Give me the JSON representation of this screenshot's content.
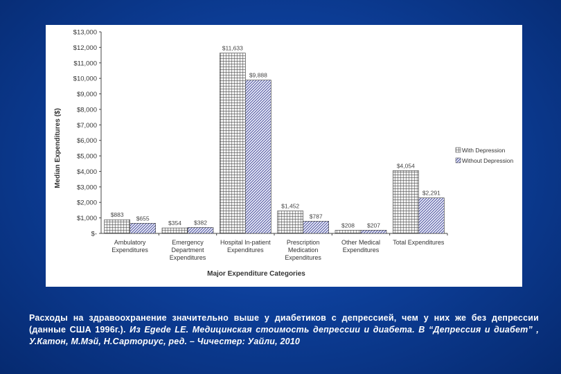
{
  "chart_data": {
    "type": "bar",
    "title": "",
    "xlabel": "Major Expenditure Categories",
    "ylabel": "Median Expenditures ($)",
    "ylim": [
      0,
      13000
    ],
    "y_ticks": [
      "$-",
      "$1,000",
      "$2,000",
      "$3,000",
      "$4,000",
      "$5,000",
      "$6,000",
      "$7,000",
      "$8,000",
      "$9,000",
      "$10,000",
      "$11,000",
      "$12,000",
      "$13,000"
    ],
    "categories": [
      [
        "Ambulatory",
        "Expenditures"
      ],
      [
        "Emergency",
        "Department",
        "Expenditures"
      ],
      [
        "Hospital In-patient",
        "Expenditures"
      ],
      [
        "Prescription",
        "Medication",
        "Expenditures"
      ],
      [
        "Other Medical",
        "Expenditures"
      ],
      [
        "Total Expenditures"
      ]
    ],
    "series": [
      {
        "name": "With Depression",
        "pattern": "grid",
        "values": [
          883,
          354,
          11633,
          1452,
          208,
          4054
        ],
        "labels": [
          "$883",
          "$354",
          "$11,633",
          "$1,452",
          "$208",
          "$4,054"
        ]
      },
      {
        "name": "Without Depression",
        "pattern": "hatch",
        "values": [
          655,
          382,
          9888,
          787,
          207,
          2291
        ],
        "labels": [
          "$655",
          "$382",
          "$9,888",
          "$787",
          "$207",
          "$2,291"
        ]
      }
    ],
    "legend_position": "right",
    "grid": false
  },
  "caption": {
    "line1": "Расходы на здравоохранение  значительно выше у диабетиков с депрессией, чем у них же без депрессии (данные США 1996г.).",
    "line2": " Из Egede LE. Медицинская стоимость депрессии и диабета. В “Депрессия и диабет” , У.Катон, М.Мэй, Н.Сарториус, ред. – Чичестер: Уайли, 2010"
  },
  "colors": {
    "background": "#0d3f9a",
    "panel": "#ffffff",
    "bar_ink": "#333333",
    "hatch_ink": "#4a4f9c"
  }
}
